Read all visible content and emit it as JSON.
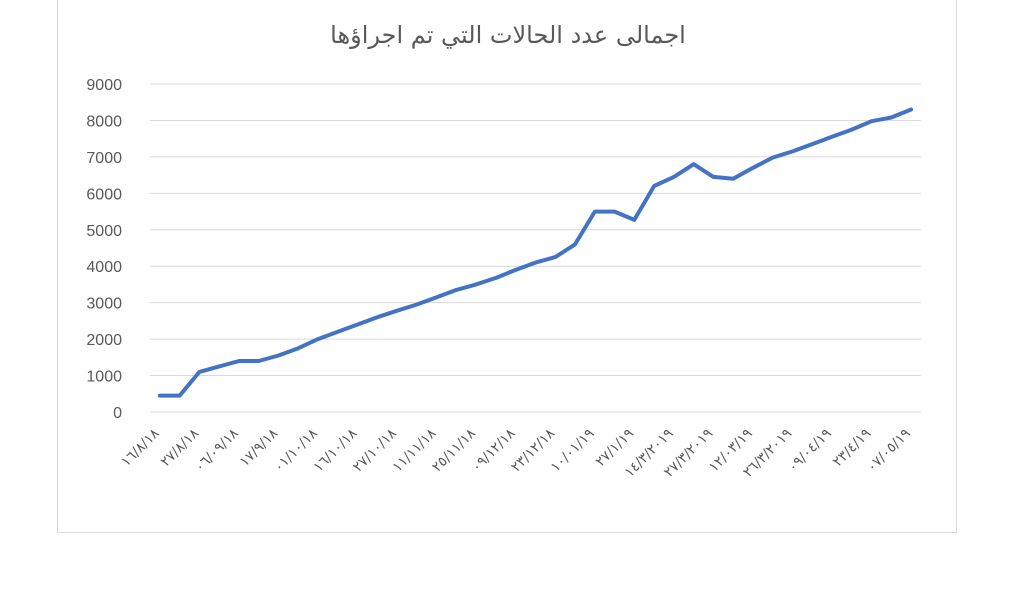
{
  "chart_data": {
    "type": "line",
    "title": "اجمالى عدد الحالات التي تم اجراؤها",
    "xlabel": "",
    "ylabel": "",
    "ylim": [
      0,
      9000
    ],
    "yticks": [
      "0",
      "1000",
      "2000",
      "3000",
      "4000",
      "5000",
      "6000",
      "7000",
      "8000",
      "9000"
    ],
    "grid": true,
    "line_color": "#4472c4",
    "x_tick_labels": [
      "١٦/٨/١٨",
      "٢٧/٨/١٨",
      "٠٦/٠٩/١٨",
      "١٧/٩/١٨",
      "٠١/١٠/١٨",
      "١٦/١٠/١٨",
      "٢٧/١٠/١٨",
      "١١/١١/١٨",
      "٢٥/١١/١٨",
      "٠٩/١٢/١٨",
      "٢٣/١٢/١٨",
      "١٠/٠١/١٩",
      "٢٧/١/١٩",
      "١٤/٣/٢٠١٩",
      "٢٧/٣/٢٠١٩",
      "١٢/٠٣/١٩",
      "٢٦/٣/٢٠١٩",
      "٠٩/٠٤/١٩",
      "٢٣/٤/١٩",
      "٠٧/٠٥/١٩"
    ],
    "values": [
      450,
      450,
      1100,
      1250,
      1400,
      1400,
      1550,
      1750,
      2000,
      2200,
      2400,
      2600,
      2780,
      2950,
      3150,
      3350,
      3500,
      3680,
      3900,
      4100,
      4250,
      4600,
      5500,
      5500,
      5270,
      6200,
      6450,
      6800,
      6450,
      6400,
      6700,
      6980,
      7150,
      7350,
      7550,
      7750,
      7980,
      8080,
      8300
    ]
  }
}
